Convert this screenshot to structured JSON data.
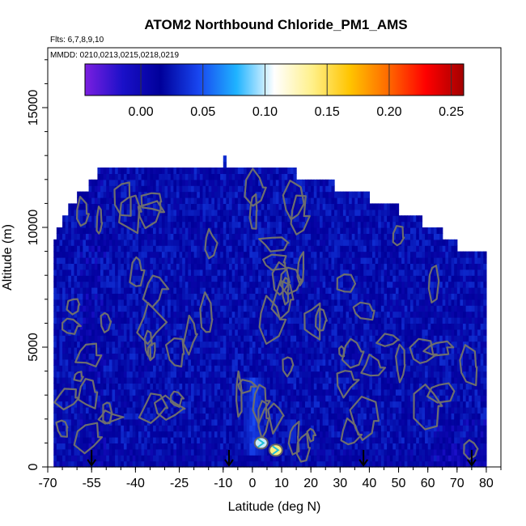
{
  "chart_data": {
    "type": "heatmap",
    "title": "ATOM2 Northbound Chloride_PM1_AMS",
    "flights_note": "Flts: 6,7,8,9,10",
    "dates_note": "MMDD: 0210,0213,0215,0218,0219",
    "xlabel": "Latitude (deg N)",
    "ylabel": "Altitude (m)",
    "xlim": [
      -70,
      85
    ],
    "ylim": [
      0,
      17500
    ],
    "x_ticks": [
      "-70",
      "-55",
      "-40",
      "-25",
      "-10",
      "0",
      "10",
      "20",
      "30",
      "40",
      "50",
      "60",
      "70",
      "80"
    ],
    "x_tick_values": [
      -70,
      -55,
      -40,
      -25,
      -10,
      0,
      10,
      20,
      30,
      40,
      50,
      60,
      70,
      80
    ],
    "y_ticks": [
      "0",
      "5000",
      "10000",
      "15000"
    ],
    "y_tick_values": [
      0,
      5000,
      10000,
      15000
    ],
    "colorbar": {
      "min": -0.045,
      "max": 0.26,
      "ticks": [
        "0.00",
        "0.05",
        "0.10",
        "0.15",
        "0.20",
        "0.25"
      ],
      "tick_values": [
        0.0,
        0.05,
        0.1,
        0.15,
        0.2,
        0.25
      ],
      "colors": [
        "#7b1fe0",
        "#1a10c8",
        "#00009a",
        "#1846f0",
        "#1fb3ff",
        "#ffffff",
        "#fff08a",
        "#ffc400",
        "#ff6a00",
        "#ff0000",
        "#a30000"
      ]
    },
    "ceiling_profile": [
      {
        "lat": -68,
        "alt": 9300
      },
      {
        "lat": -67,
        "alt": 10000
      },
      {
        "lat": -65,
        "alt": 10500
      },
      {
        "lat": -63,
        "alt": 11000
      },
      {
        "lat": -60,
        "alt": 11500
      },
      {
        "lat": -56,
        "alt": 12000
      },
      {
        "lat": -53,
        "alt": 12500
      },
      {
        "lat": -11,
        "alt": 12500
      },
      {
        "lat": -10,
        "alt": 12900
      },
      {
        "lat": -9,
        "alt": 12500
      },
      {
        "lat": 15,
        "alt": 12000
      },
      {
        "lat": 28,
        "alt": 11500
      },
      {
        "lat": 40,
        "alt": 11000
      },
      {
        "lat": 50,
        "alt": 10500
      },
      {
        "lat": 58,
        "alt": 10000
      },
      {
        "lat": 65,
        "alt": 9500
      },
      {
        "lat": 70,
        "alt": 9000
      },
      {
        "lat": 80,
        "alt": 9000
      }
    ],
    "data_extent": {
      "lat_min": -68,
      "lat_max": 80
    },
    "background_value": 0.02,
    "features": [
      {
        "lat": 0,
        "alt_min": 500,
        "alt_max": 3500,
        "value": 0.045,
        "note": "enhanced plume near equator"
      },
      {
        "lat": 3,
        "alt": 1000,
        "value": 0.1
      },
      {
        "lat": 8,
        "alt": 700,
        "value": 0.14
      }
    ],
    "profile_arrows_lat": [
      -55,
      -8,
      38,
      75
    ]
  }
}
